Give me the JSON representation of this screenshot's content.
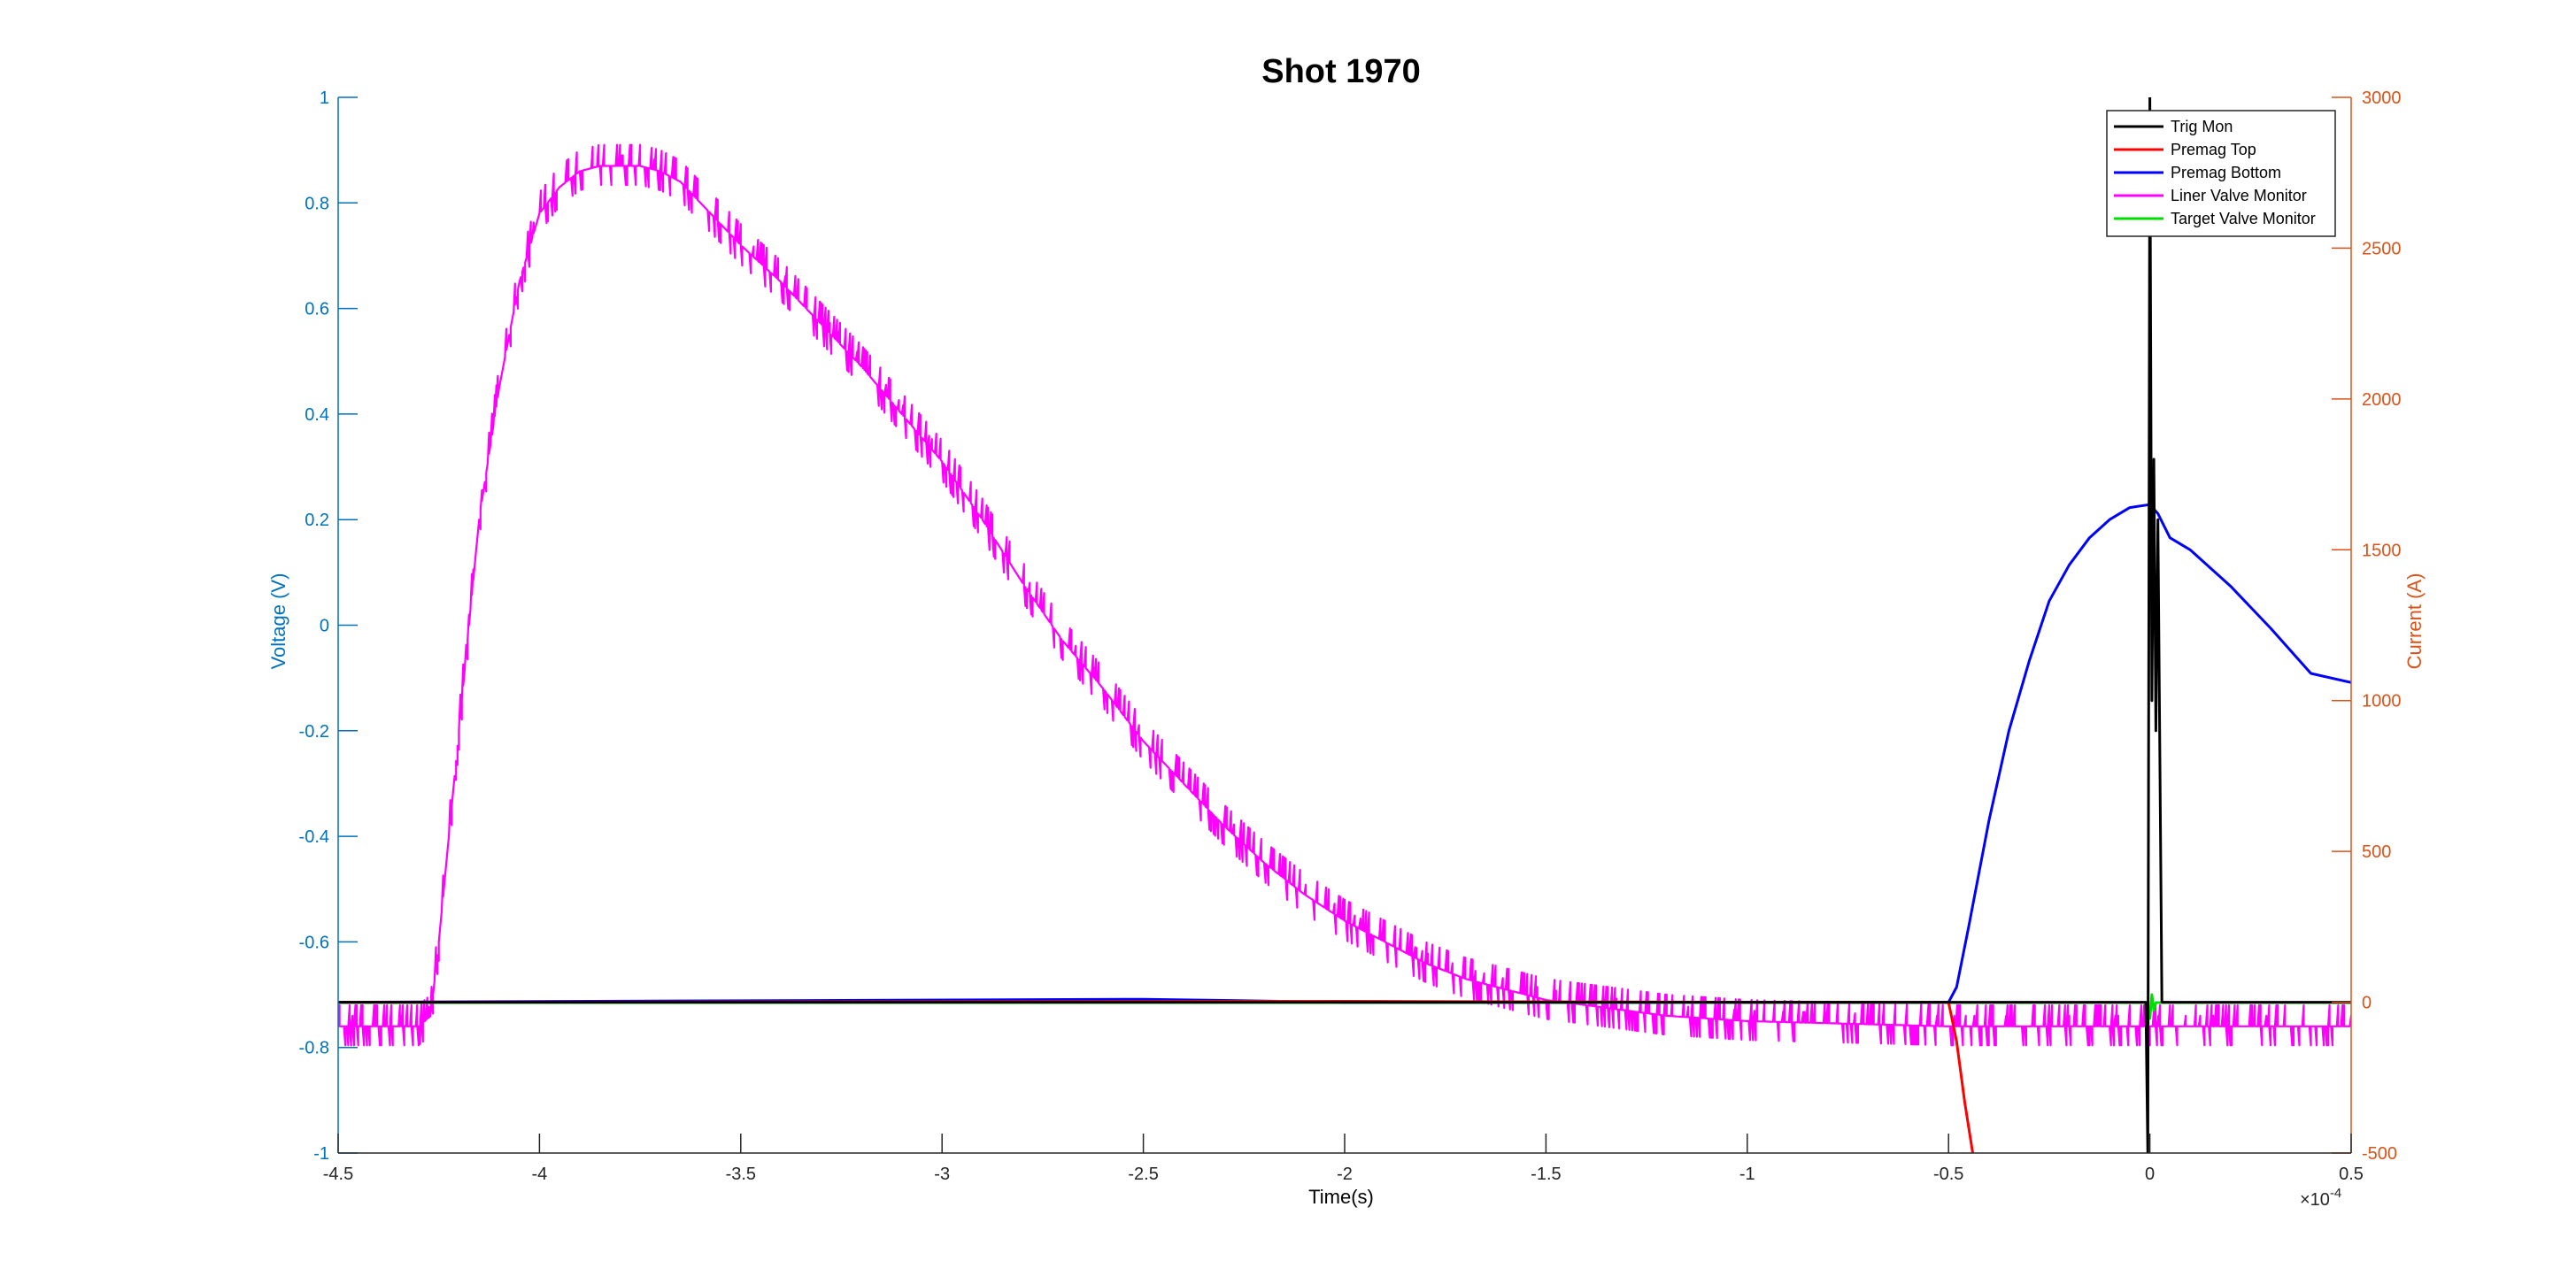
{
  "chart_data": {
    "type": "line",
    "title": "Shot 1970",
    "xlabel": "Time(s)",
    "x_exponent": "×10",
    "x_exponent_power": "-4",
    "xlim": [
      -4.5,
      0.5
    ],
    "xticks": [
      -4.5,
      -4,
      -3.5,
      -3,
      -2.5,
      -2,
      -1.5,
      -1,
      -0.5,
      0,
      0.5
    ],
    "y_left": {
      "label": "Voltage (V)",
      "color": "#0072BD",
      "lim": [
        -1,
        1
      ],
      "ticks": [
        -1,
        -0.8,
        -0.6,
        -0.4,
        -0.2,
        0,
        0.2,
        0.4,
        0.6,
        0.8,
        1
      ]
    },
    "y_right": {
      "label": "Current (A)",
      "color": "#D95319",
      "lim": [
        -500,
        3000
      ],
      "ticks": [
        -500,
        0,
        500,
        1000,
        1500,
        2000,
        2500,
        3000
      ]
    },
    "grid": false,
    "legend_position": "top-right",
    "series": [
      {
        "name": "Trig Mon",
        "color": "#000000",
        "axis": "right",
        "x": [
          -4.5,
          -0.02,
          -0.01,
          -0.005,
          0,
          0.005,
          0.01,
          0.015,
          0.02,
          0.03,
          0.5
        ],
        "y": [
          0,
          0,
          0,
          -500,
          3000,
          1000,
          1800,
          900,
          1600,
          0,
          0
        ]
      },
      {
        "name": "Premag Top",
        "color": "#FF0000",
        "axis": "right",
        "x": [
          -4.5,
          -2.0,
          -1.0,
          -0.5,
          -0.48,
          -0.46,
          -0.44
        ],
        "y": [
          0,
          3,
          0,
          0,
          -130,
          -330,
          -500
        ]
      },
      {
        "name": "Premag Bottom",
        "color": "#0000FF",
        "axis": "right",
        "x": [
          -4.5,
          -2.5,
          -2.0,
          -0.5,
          -0.48,
          -0.45,
          -0.4,
          -0.35,
          -0.3,
          -0.25,
          -0.2,
          -0.15,
          -0.1,
          -0.05,
          0,
          0.02,
          0.05,
          0.1,
          0.2,
          0.3,
          0.4,
          0.5
        ],
        "y": [
          0,
          10,
          0,
          0,
          50,
          250,
          600,
          900,
          1130,
          1330,
          1450,
          1540,
          1600,
          1640,
          1650,
          1620,
          1540,
          1500,
          1380,
          1240,
          1090,
          1060
        ]
      },
      {
        "name": "Liner Valve Monitor",
        "color": "#FF00FF",
        "axis": "left",
        "noise_band": 0.04,
        "x": [
          -4.5,
          -4.3,
          -4.27,
          -4.25,
          -4.2,
          -4.15,
          -4.1,
          -4.05,
          -4.0,
          -3.95,
          -3.9,
          -3.85,
          -3.8,
          -3.75,
          -3.7,
          -3.65,
          -3.6,
          -3.5,
          -3.4,
          -3.3,
          -3.2,
          -3.1,
          -3.0,
          -2.9,
          -2.8,
          -2.7,
          -2.6,
          -2.5,
          -2.4,
          -2.3,
          -2.2,
          -2.1,
          -2.0,
          -1.9,
          -1.8,
          -1.7,
          -1.6,
          -1.5,
          -1.4,
          -1.3,
          -1.2,
          -1.1,
          -1.0,
          -0.5,
          0,
          0.5
        ],
        "y": [
          -0.76,
          -0.76,
          -0.74,
          -0.6,
          -0.2,
          0.2,
          0.45,
          0.65,
          0.78,
          0.83,
          0.86,
          0.87,
          0.87,
          0.87,
          0.86,
          0.84,
          0.8,
          0.72,
          0.65,
          0.57,
          0.49,
          0.4,
          0.31,
          0.2,
          0.08,
          -0.03,
          -0.12,
          -0.22,
          -0.3,
          -0.38,
          -0.45,
          -0.51,
          -0.56,
          -0.6,
          -0.64,
          -0.67,
          -0.69,
          -0.71,
          -0.72,
          -0.73,
          -0.74,
          -0.745,
          -0.75,
          -0.76,
          -0.76,
          -0.76
        ]
      },
      {
        "name": "Target Valve Monitor",
        "color": "#00DD00",
        "axis": "left",
        "x": [
          -4.5,
          -0.01,
          0,
          0.005,
          0.01,
          0.015,
          0.5
        ],
        "y": [
          -0.715,
          -0.715,
          -0.745,
          -0.7,
          -0.73,
          -0.715,
          -0.715
        ]
      }
    ]
  }
}
